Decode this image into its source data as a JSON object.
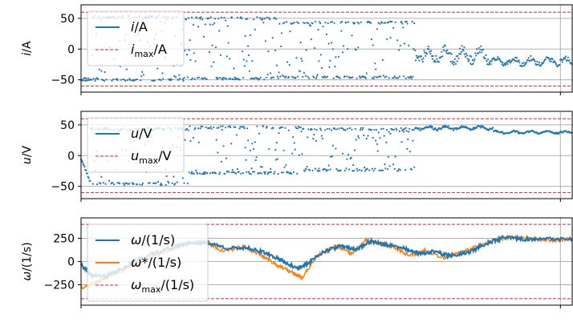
{
  "chart_data": [
    {
      "type": "scatter",
      "ylabel": "i/A",
      "ylim": [
        -70,
        72
      ],
      "yticks": [
        50,
        0,
        -50
      ],
      "ytick_labels": [
        "50",
        "0",
        "−50"
      ],
      "xlim": [
        0,
        1
      ],
      "grid": true,
      "legend": {
        "placement": "upper-left",
        "entries": [
          {
            "label": "i/A",
            "style": "solid",
            "color": "#1f77b4"
          },
          {
            "label": "i_max/A",
            "style": "dashed",
            "color": "#d62728"
          }
        ]
      },
      "limits": [
        60,
        -60
      ],
      "series": [
        {
          "name": "i/A",
          "color": "#1f77b4",
          "seed": 11,
          "segments": [
            {
              "x0": 0.0,
              "x1": 0.02,
              "mode": "band",
              "lo": -52,
              "hi": -46
            },
            {
              "x0": 0.02,
              "x1": 0.21,
              "mode": "bang",
              "lo": -52,
              "hi": 54
            },
            {
              "x0": 0.21,
              "x1": 0.4,
              "mode": "bang",
              "lo": -50,
              "hi": 52
            },
            {
              "x0": 0.4,
              "x1": 0.68,
              "mode": "bang",
              "lo": -48,
              "hi": 45
            },
            {
              "x0": 0.68,
              "x1": 0.83,
              "mode": "wave",
              "mid": -10,
              "amp": 15
            },
            {
              "x0": 0.83,
              "x1": 1.0,
              "mode": "wave",
              "mid": -20,
              "amp": 8
            }
          ]
        }
      ]
    },
    {
      "type": "scatter",
      "ylabel": "u/V",
      "ylim": [
        -70,
        72
      ],
      "yticks": [
        50,
        0,
        -50
      ],
      "ytick_labels": [
        "50",
        "0",
        "−50"
      ],
      "xlim": [
        0,
        1
      ],
      "grid": true,
      "legend": {
        "placement": "upper-left",
        "entries": [
          {
            "label": "u/V",
            "style": "solid",
            "color": "#1f77b4"
          },
          {
            "label": "u_max/V",
            "style": "dashed",
            "color": "#d62728"
          }
        ]
      },
      "limits": [
        60,
        -60
      ],
      "series": [
        {
          "name": "u/V",
          "color": "#1f77b4",
          "seed": 23,
          "segments": [
            {
              "x0": 0.0,
              "x1": 0.02,
              "mode": "ramp",
              "from": -5,
              "to": -45
            },
            {
              "x0": 0.02,
              "x1": 0.22,
              "mode": "bang",
              "lo": -48,
              "hi": 45
            },
            {
              "x0": 0.22,
              "x1": 0.45,
              "mode": "bang",
              "lo": -30,
              "hi": 48
            },
            {
              "x0": 0.45,
              "x1": 0.68,
              "mode": "bang",
              "lo": -25,
              "hi": 45
            },
            {
              "x0": 0.68,
              "x1": 0.84,
              "mode": "wave",
              "mid": 45,
              "amp": 4
            },
            {
              "x0": 0.84,
              "x1": 1.0,
              "mode": "wave",
              "mid": 38,
              "amp": 3
            }
          ]
        }
      ]
    },
    {
      "type": "line",
      "ylabel": "ω/(1/s)",
      "ylim": [
        -470,
        470
      ],
      "yticks": [
        250,
        0,
        -250
      ],
      "ytick_labels": [
        "250",
        "0",
        "−250"
      ],
      "xlim": [
        0,
        1
      ],
      "grid": true,
      "legend": {
        "placement": "upper-left",
        "entries": [
          {
            "label": "ω/(1/s)",
            "style": "solid",
            "color": "#1f77b4"
          },
          {
            "label": "ω*/(1/s)",
            "style": "solid",
            "color": "#ff7f0e"
          },
          {
            "label": "ω_max/(1/s)",
            "style": "dashed",
            "color": "#d62728"
          }
        ]
      },
      "limits": [
        400,
        -400
      ],
      "series": [
        {
          "name": "ω*/(1/s)",
          "color": "#ff7f0e",
          "seed": 37,
          "points": [
            [
              0.0,
              -280
            ],
            [
              0.03,
              -230
            ],
            [
              0.06,
              -150
            ],
            [
              0.1,
              -60
            ],
            [
              0.14,
              40
            ],
            [
              0.18,
              120
            ],
            [
              0.21,
              190
            ],
            [
              0.25,
              220
            ],
            [
              0.29,
              110
            ],
            [
              0.33,
              160
            ],
            [
              0.37,
              60
            ],
            [
              0.4,
              -40
            ],
            [
              0.43,
              -120
            ],
            [
              0.45,
              -180
            ],
            [
              0.48,
              60
            ],
            [
              0.52,
              170
            ],
            [
              0.55,
              80
            ],
            [
              0.58,
              230
            ],
            [
              0.61,
              190
            ],
            [
              0.64,
              150
            ],
            [
              0.67,
              60
            ],
            [
              0.7,
              120
            ],
            [
              0.74,
              40
            ],
            [
              0.77,
              90
            ],
            [
              0.8,
              150
            ],
            [
              0.84,
              230
            ],
            [
              0.88,
              260
            ],
            [
              0.92,
              240
            ],
            [
              0.96,
              230
            ],
            [
              1.0,
              240
            ]
          ]
        },
        {
          "name": "ω/(1/s)",
          "color": "#1f77b4",
          "seed": 41,
          "points": [
            [
              0.0,
              -30
            ],
            [
              0.02,
              -150
            ],
            [
              0.05,
              -160
            ],
            [
              0.08,
              -90
            ],
            [
              0.11,
              10
            ],
            [
              0.15,
              90
            ],
            [
              0.19,
              160
            ],
            [
              0.22,
              200
            ],
            [
              0.26,
              200
            ],
            [
              0.3,
              140
            ],
            [
              0.34,
              150
            ],
            [
              0.38,
              80
            ],
            [
              0.41,
              10
            ],
            [
              0.44,
              -80
            ],
            [
              0.46,
              -30
            ],
            [
              0.49,
              100
            ],
            [
              0.53,
              170
            ],
            [
              0.56,
              130
            ],
            [
              0.59,
              220
            ],
            [
              0.62,
              180
            ],
            [
              0.66,
              140
            ],
            [
              0.69,
              80
            ],
            [
              0.72,
              110
            ],
            [
              0.75,
              60
            ],
            [
              0.79,
              100
            ],
            [
              0.82,
              180
            ],
            [
              0.86,
              260
            ],
            [
              0.9,
              240
            ],
            [
              0.94,
              240
            ],
            [
              1.0,
              240
            ]
          ]
        }
      ]
    }
  ]
}
